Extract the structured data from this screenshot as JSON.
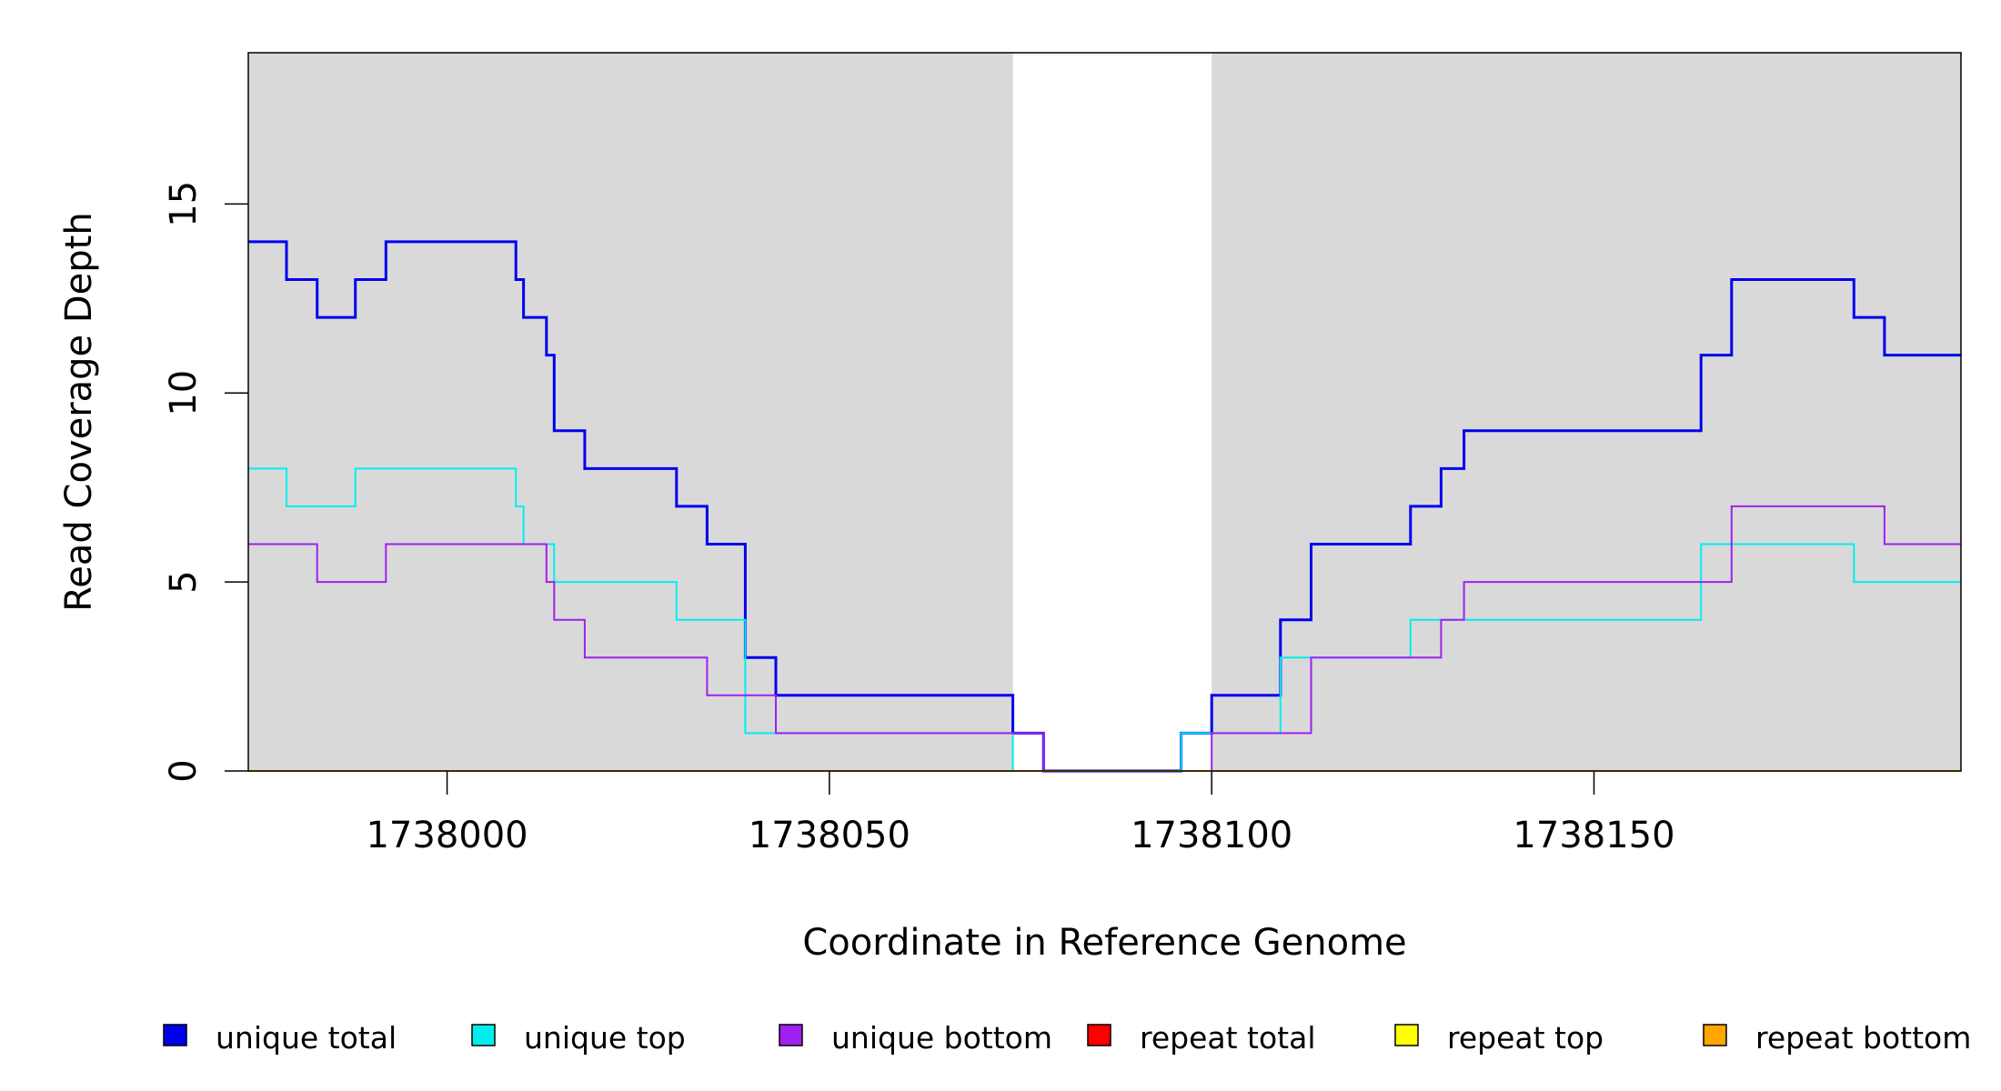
{
  "chart_data": {
    "type": "line",
    "step": true,
    "xlabel": "Coordinate in Reference Genome",
    "ylabel": "Read Coverage Depth",
    "xlim": [
      1737974,
      1738198
    ],
    "ylim": [
      0,
      19
    ],
    "x_ticks": [
      1738000,
      1738050,
      1738100,
      1738150
    ],
    "y_ticks": [
      0,
      5,
      10,
      15
    ],
    "grid": false,
    "legend_position": "bottom",
    "shaded_regions": [
      {
        "from": 1737974,
        "to": 1738074,
        "color": "#d9d9d9"
      },
      {
        "from": 1738100,
        "to": 1738198,
        "color": "#d9d9d9"
      }
    ],
    "series": [
      {
        "name": "unique total",
        "color": "#0000ee",
        "width": 3,
        "points": [
          [
            1737974,
            14
          ],
          [
            1737979,
            13
          ],
          [
            1737983,
            12
          ],
          [
            1737988,
            13
          ],
          [
            1737992,
            14
          ],
          [
            1738009,
            13
          ],
          [
            1738010,
            12
          ],
          [
            1738013,
            11
          ],
          [
            1738014,
            9
          ],
          [
            1738018,
            8
          ],
          [
            1738030,
            7
          ],
          [
            1738034,
            6
          ],
          [
            1738039,
            3
          ],
          [
            1738043,
            2
          ],
          [
            1738074,
            1
          ],
          [
            1738078,
            0
          ],
          [
            1738096,
            1
          ],
          [
            1738100,
            2
          ],
          [
            1738109,
            4
          ],
          [
            1738113,
            6
          ],
          [
            1738126,
            7
          ],
          [
            1738130,
            8
          ],
          [
            1738133,
            9
          ],
          [
            1738164,
            11
          ],
          [
            1738168,
            13
          ],
          [
            1738184,
            12
          ],
          [
            1738188,
            11
          ],
          [
            1738198,
            11
          ]
        ]
      },
      {
        "name": "unique top",
        "color": "#00eeee",
        "width": 2,
        "points": [
          [
            1737974,
            8
          ],
          [
            1737979,
            7
          ],
          [
            1737988,
            8
          ],
          [
            1738009,
            7
          ],
          [
            1738010,
            6
          ],
          [
            1738014,
            5
          ],
          [
            1738030,
            4
          ],
          [
            1738039,
            1
          ],
          [
            1738074,
            0
          ],
          [
            1738096,
            1
          ],
          [
            1738100,
            1
          ],
          [
            1738109,
            3
          ],
          [
            1738113,
            3
          ],
          [
            1738126,
            4
          ],
          [
            1738164,
            6
          ],
          [
            1738184,
            5
          ],
          [
            1738198,
            5
          ]
        ]
      },
      {
        "name": "unique bottom",
        "color": "#a020f0",
        "width": 2,
        "points": [
          [
            1737974,
            6
          ],
          [
            1737983,
            5
          ],
          [
            1737992,
            6
          ],
          [
            1738013,
            5
          ],
          [
            1738014,
            4
          ],
          [
            1738018,
            3
          ],
          [
            1738034,
            2
          ],
          [
            1738043,
            1
          ],
          [
            1738074,
            1
          ],
          [
            1738078,
            0
          ],
          [
            1738100,
            1
          ],
          [
            1738113,
            3
          ],
          [
            1738130,
            4
          ],
          [
            1738133,
            5
          ],
          [
            1738168,
            7
          ],
          [
            1738188,
            6
          ],
          [
            1738198,
            6
          ]
        ]
      },
      {
        "name": "repeat total",
        "color": "#ff0000",
        "width": 2,
        "points": [
          [
            1737974,
            0
          ],
          [
            1738198,
            0
          ]
        ]
      },
      {
        "name": "repeat top",
        "color": "#ffff00",
        "width": 2,
        "points": [
          [
            1737974,
            0
          ],
          [
            1738198,
            0
          ]
        ]
      },
      {
        "name": "repeat bottom",
        "color": "#ffa500",
        "width": 2,
        "points": [
          [
            1737974,
            0
          ],
          [
            1738198,
            0
          ]
        ]
      }
    ]
  }
}
